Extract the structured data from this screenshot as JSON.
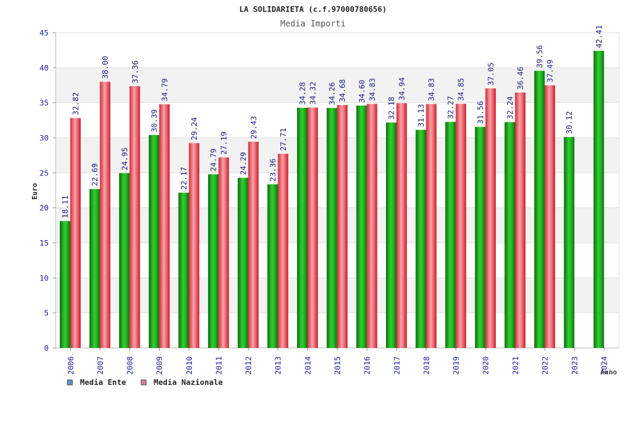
{
  "chart_data": {
    "type": "bar",
    "title": "LA SOLIDARIETA (c.f.97000780656)",
    "subtitle": "Media Importi",
    "ylabel": "Euro",
    "xlabel": "Anno",
    "ylim": [
      0,
      45
    ],
    "yticks": [
      0,
      5,
      10,
      15,
      20,
      25,
      30,
      35,
      40,
      45
    ],
    "grid": true,
    "legend_position": "bottom-left",
    "categories": [
      "2006",
      "2007",
      "2008",
      "2009",
      "2010",
      "2011",
      "2012",
      "2013",
      "2014",
      "2015",
      "2016",
      "2017",
      "2018",
      "2019",
      "2020",
      "2021",
      "2022",
      "2023",
      "2024"
    ],
    "series": [
      {
        "name": "Media Ente",
        "color": "#1db31d",
        "legend_color": "#5b9bd5",
        "values": [
          18.11,
          22.69,
          24.95,
          30.39,
          22.17,
          24.79,
          24.29,
          23.36,
          34.28,
          34.26,
          34.6,
          32.18,
          31.13,
          32.27,
          31.56,
          32.24,
          39.56,
          30.12,
          42.41
        ],
        "labels": [
          "18.11",
          "22.69",
          "24.95",
          "30.39",
          "22.17",
          "24.79",
          "24.29",
          "23.36",
          "34.28",
          "34.26",
          "34.60",
          "32.18",
          "31.13",
          "32.27",
          "31.56",
          "32.24",
          "39.56",
          "30.12",
          "42.41"
        ]
      },
      {
        "name": "Media Nazionale",
        "color": "#e8404a",
        "legend_color": "#e07a9a",
        "values": [
          32.82,
          38.0,
          37.36,
          34.79,
          29.24,
          27.19,
          29.43,
          27.71,
          34.32,
          34.68,
          34.83,
          34.94,
          34.83,
          34.85,
          37.05,
          36.46,
          37.49,
          null,
          null
        ],
        "labels": [
          "32.82",
          "38.00",
          "37.36",
          "34.79",
          "29.24",
          "27.19",
          "29.43",
          "27.71",
          "34.32",
          "34.68",
          "34.83",
          "34.94",
          "34.83",
          "34.85",
          "37.05",
          "36.46",
          "37.49",
          null,
          null
        ]
      }
    ]
  }
}
